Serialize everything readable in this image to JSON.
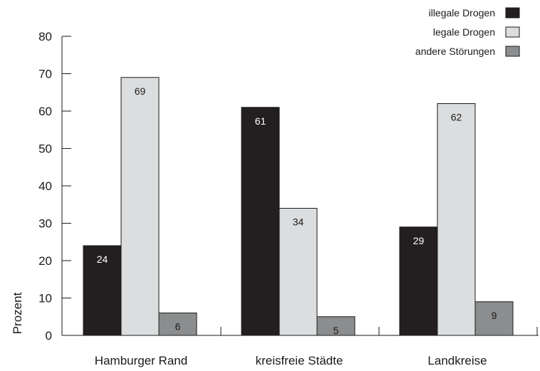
{
  "chart_data": {
    "type": "bar",
    "title": "",
    "xlabel": "",
    "ylabel": "Prozent",
    "ylim": [
      0,
      80
    ],
    "yticks": [
      0,
      10,
      20,
      30,
      40,
      50,
      60,
      70,
      80
    ],
    "grid": false,
    "legend_position": "top-right",
    "categories": [
      "Hamburger Rand",
      "kreisfreie Städte",
      "Landkreise"
    ],
    "series": [
      {
        "name": "illegale Drogen",
        "color": "#231f20",
        "values": [
          24,
          61,
          29
        ]
      },
      {
        "name": "legale Drogen",
        "color": "#dcdddf",
        "values": [
          69,
          34,
          62
        ]
      },
      {
        "name": "andere Störungen",
        "color": "#8c8d8f",
        "values": [
          6,
          5,
          9
        ]
      }
    ]
  }
}
